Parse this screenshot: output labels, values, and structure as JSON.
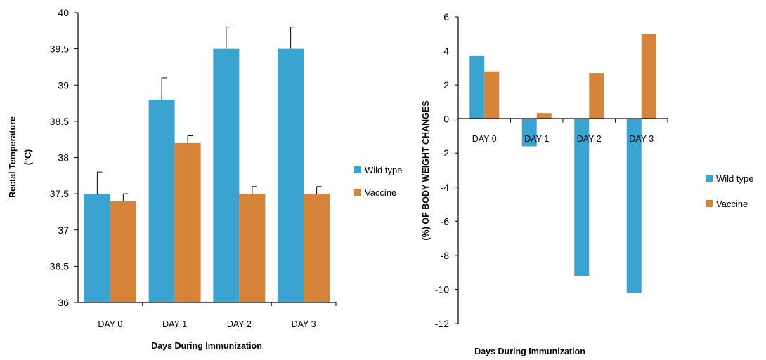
{
  "colors": {
    "wild_type": "#3ba3cf",
    "vaccine": "#d6843a",
    "axis": "#000000"
  },
  "chart_data": [
    {
      "type": "bar",
      "title": "",
      "xlabel": "Days During Immunization",
      "ylabel_line1": "Rectal Temperature",
      "ylabel_line2": "(°C)",
      "categories": [
        "DAY 0",
        "DAY 1",
        "DAY 2",
        "DAY  3"
      ],
      "ylim": [
        36,
        40
      ],
      "yticks": [
        "36",
        "36.5",
        "37",
        "37.5",
        "38",
        "38.5",
        "39",
        "39.5",
        "40"
      ],
      "ytick_values": [
        36,
        36.5,
        37,
        37.5,
        38,
        38.5,
        39,
        39.5,
        40
      ],
      "legend_position": "right",
      "series": [
        {
          "name": "Wild type",
          "color": "#3ba3cf",
          "values": [
            37.5,
            38.8,
            39.5,
            39.5
          ],
          "errors": [
            0.3,
            0.3,
            0.3,
            0.3
          ]
        },
        {
          "name": "Vaccine",
          "color": "#d6843a",
          "values": [
            37.4,
            38.2,
            37.5,
            37.5
          ],
          "errors": [
            0.1,
            0.1,
            0.1,
            0.1
          ]
        }
      ],
      "grid": false
    },
    {
      "type": "bar",
      "title": "",
      "xlabel": "Days During Immunization",
      "ylabel": "(%) OF BODY WEIGHT CHANGES",
      "categories": [
        "DAY 0",
        "DAY 1",
        "DAY 2",
        "DAY  3"
      ],
      "ylim": [
        -12,
        6
      ],
      "yticks": [
        "-12",
        "-10",
        "-8",
        "-6",
        "-4",
        "-2",
        "0",
        "2",
        "4",
        "6"
      ],
      "ytick_values": [
        -12,
        -10,
        -8,
        -6,
        -4,
        -2,
        0,
        2,
        4,
        6
      ],
      "legend_position": "right",
      "series": [
        {
          "name": "Wild type",
          "color": "#3ba3cf",
          "values": [
            3.7,
            -1.6,
            -9.2,
            -10.2
          ]
        },
        {
          "name": "Vaccine",
          "color": "#d6843a",
          "values": [
            2.8,
            0.35,
            2.7,
            5.0
          ]
        }
      ],
      "grid": false
    }
  ]
}
